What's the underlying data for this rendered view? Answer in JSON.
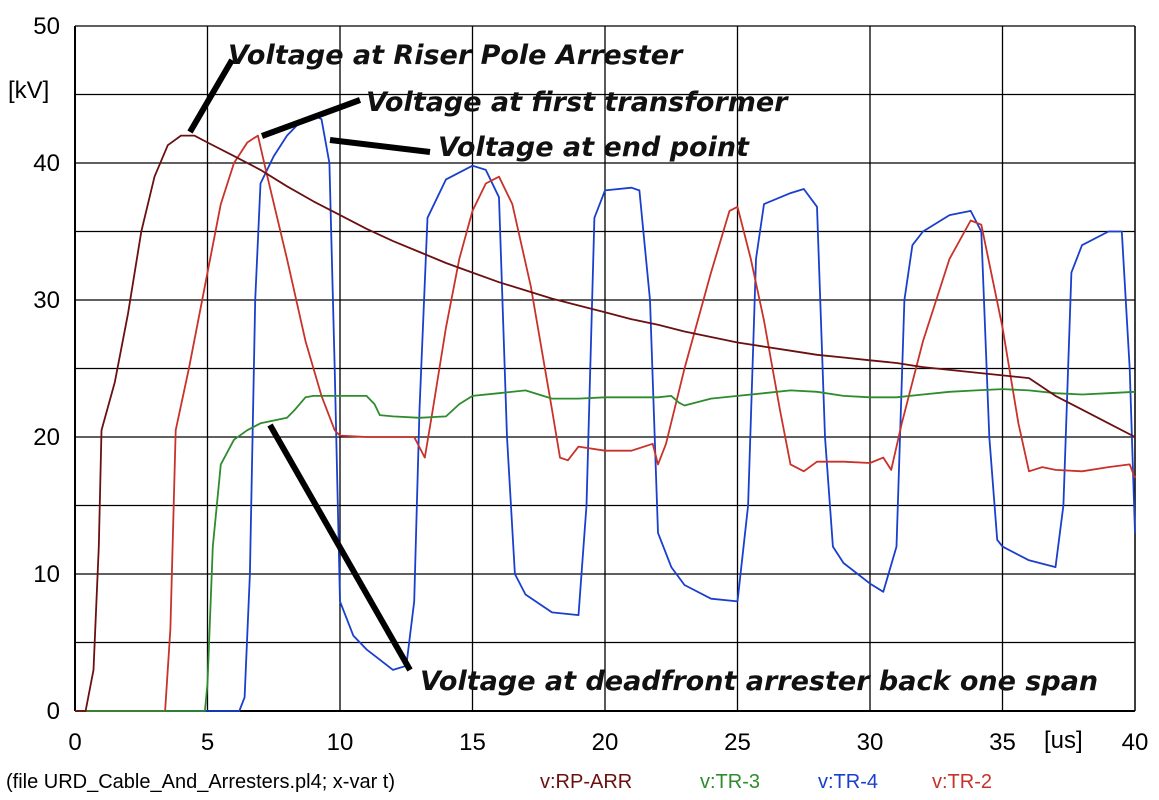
{
  "chart_data": {
    "type": "line",
    "title": "",
    "xlabel": "",
    "ylabel": "",
    "x_unit": "[us]",
    "y_unit": "[kV]",
    "xlim": [
      0,
      40
    ],
    "ylim": [
      0,
      50
    ],
    "x_ticks": [
      0,
      5,
      10,
      15,
      20,
      25,
      30,
      35,
      40
    ],
    "y_ticks": [
      0,
      10,
      20,
      30,
      40,
      50
    ],
    "grid": true,
    "footer_text": "(file URD_Cable_And_Arresters.pl4; x-var t)",
    "legend_position": "bottom",
    "series": [
      {
        "name": "v:RP-ARR",
        "color": "#6b1010",
        "points": [
          [
            0,
            0
          ],
          [
            0.4,
            0
          ],
          [
            0.7,
            3
          ],
          [
            0.9,
            12
          ],
          [
            1.0,
            20.5
          ],
          [
            1.5,
            24
          ],
          [
            2,
            29
          ],
          [
            2.5,
            35
          ],
          [
            3,
            39
          ],
          [
            3.5,
            41.3
          ],
          [
            4,
            42
          ],
          [
            4.5,
            42
          ],
          [
            5,
            41.5
          ],
          [
            6,
            40.5
          ],
          [
            7,
            39.5
          ],
          [
            8,
            38.3
          ],
          [
            9,
            37.2
          ],
          [
            10,
            36.2
          ],
          [
            11,
            35.2
          ],
          [
            12,
            34.3
          ],
          [
            13,
            33.5
          ],
          [
            14,
            32.7
          ],
          [
            15,
            32
          ],
          [
            16,
            31.3
          ],
          [
            17,
            30.7
          ],
          [
            18,
            30.1
          ],
          [
            19,
            29.6
          ],
          [
            20,
            29.1
          ],
          [
            21,
            28.6
          ],
          [
            22,
            28.2
          ],
          [
            23,
            27.7
          ],
          [
            24,
            27.3
          ],
          [
            25,
            26.9
          ],
          [
            26,
            26.6
          ],
          [
            27,
            26.3
          ],
          [
            28,
            26
          ],
          [
            29,
            25.8
          ],
          [
            30,
            25.6
          ],
          [
            31,
            25.4
          ],
          [
            32,
            25.1
          ],
          [
            33,
            24.9
          ],
          [
            34,
            24.7
          ],
          [
            35,
            24.5
          ],
          [
            36,
            24.3
          ],
          [
            37,
            23
          ],
          [
            38,
            22
          ],
          [
            39,
            21
          ],
          [
            40,
            20
          ]
        ]
      },
      {
        "name": "v:TR-3",
        "color": "#2e8b2e",
        "points": [
          [
            0,
            0
          ],
          [
            4.9,
            0
          ],
          [
            5.0,
            2
          ],
          [
            5.2,
            12
          ],
          [
            5.5,
            18
          ],
          [
            6,
            19.8
          ],
          [
            6.5,
            20.5
          ],
          [
            7,
            21
          ],
          [
            8,
            21.4
          ],
          [
            8.3,
            22
          ],
          [
            8.7,
            22.9
          ],
          [
            9,
            23
          ],
          [
            10,
            23
          ],
          [
            11,
            23
          ],
          [
            11.3,
            22.4
          ],
          [
            11.5,
            21.6
          ],
          [
            12,
            21.5
          ],
          [
            13,
            21.4
          ],
          [
            14,
            21.5
          ],
          [
            14.5,
            22.4
          ],
          [
            15,
            23
          ],
          [
            16,
            23.2
          ],
          [
            17,
            23.4
          ],
          [
            18,
            22.8
          ],
          [
            19,
            22.8
          ],
          [
            20,
            22.9
          ],
          [
            21,
            22.9
          ],
          [
            22,
            22.9
          ],
          [
            22.5,
            23
          ],
          [
            22.8,
            22.5
          ],
          [
            23,
            22.3
          ],
          [
            24,
            22.8
          ],
          [
            25,
            23
          ],
          [
            26,
            23.2
          ],
          [
            27,
            23.4
          ],
          [
            28,
            23.3
          ],
          [
            29,
            23
          ],
          [
            30,
            22.9
          ],
          [
            31,
            22.9
          ],
          [
            32,
            23.1
          ],
          [
            33,
            23.3
          ],
          [
            34,
            23.4
          ],
          [
            35,
            23.5
          ],
          [
            36,
            23.4
          ],
          [
            37,
            23.2
          ],
          [
            38,
            23.1
          ],
          [
            39,
            23.2
          ],
          [
            40,
            23.3
          ]
        ]
      },
      {
        "name": "v:TR-4",
        "color": "#1a3fcc",
        "points": [
          [
            0,
            0
          ],
          [
            6.2,
            0
          ],
          [
            6.4,
            1
          ],
          [
            6.6,
            10
          ],
          [
            6.8,
            30
          ],
          [
            7,
            38.5
          ],
          [
            7.5,
            40.5
          ],
          [
            8,
            42
          ],
          [
            8.5,
            43
          ],
          [
            9,
            43.5
          ],
          [
            9.3,
            43.2
          ],
          [
            9.6,
            40
          ],
          [
            9.8,
            25
          ],
          [
            10,
            8
          ],
          [
            10.5,
            5.5
          ],
          [
            11,
            4.5
          ],
          [
            12,
            3
          ],
          [
            12.5,
            3.3
          ],
          [
            12.8,
            8
          ],
          [
            13,
            22
          ],
          [
            13.3,
            36
          ],
          [
            14,
            38.8
          ],
          [
            15,
            39.8
          ],
          [
            15.5,
            39.5
          ],
          [
            16,
            37.5
          ],
          [
            16.3,
            20
          ],
          [
            16.6,
            10
          ],
          [
            17,
            8.5
          ],
          [
            18,
            7.2
          ],
          [
            19,
            7
          ],
          [
            19.3,
            15
          ],
          [
            19.6,
            36
          ],
          [
            20,
            38
          ],
          [
            21,
            38.2
          ],
          [
            21.3,
            38
          ],
          [
            21.7,
            30
          ],
          [
            22,
            13
          ],
          [
            22.5,
            10.5
          ],
          [
            23,
            9.2
          ],
          [
            24,
            8.2
          ],
          [
            25,
            8
          ],
          [
            25.4,
            15
          ],
          [
            25.7,
            33
          ],
          [
            26,
            37
          ],
          [
            27,
            37.8
          ],
          [
            27.5,
            38.1
          ],
          [
            28,
            36.8
          ],
          [
            28.3,
            20
          ],
          [
            28.6,
            12
          ],
          [
            29,
            10.8
          ],
          [
            30,
            9.3
          ],
          [
            30.5,
            8.7
          ],
          [
            31,
            12
          ],
          [
            31.3,
            30
          ],
          [
            31.6,
            34
          ],
          [
            32,
            35
          ],
          [
            33,
            36.2
          ],
          [
            33.8,
            36.5
          ],
          [
            34.2,
            35
          ],
          [
            34.5,
            20
          ],
          [
            34.8,
            12.5
          ],
          [
            35,
            12
          ],
          [
            36,
            11
          ],
          [
            37,
            10.5
          ],
          [
            37.3,
            15
          ],
          [
            37.6,
            32
          ],
          [
            38,
            34
          ],
          [
            39,
            35
          ],
          [
            39.5,
            35
          ],
          [
            39.8,
            25
          ],
          [
            40,
            13
          ]
        ]
      },
      {
        "name": "v:TR-2",
        "color": "#c8322a",
        "points": [
          [
            0,
            0
          ],
          [
            3.4,
            0
          ],
          [
            3.6,
            6
          ],
          [
            3.8,
            20.5
          ],
          [
            4.3,
            25
          ],
          [
            5,
            32
          ],
          [
            5.5,
            37
          ],
          [
            6,
            40
          ],
          [
            6.5,
            41.5
          ],
          [
            6.9,
            42
          ],
          [
            7.2,
            39.5
          ],
          [
            8,
            33
          ],
          [
            8.7,
            27
          ],
          [
            9.3,
            23
          ],
          [
            9.8,
            20.5
          ],
          [
            10,
            20.1
          ],
          [
            11,
            20
          ],
          [
            12,
            20
          ],
          [
            12.8,
            20
          ],
          [
            13.2,
            18.5
          ],
          [
            13.5,
            22
          ],
          [
            14,
            28
          ],
          [
            14.5,
            33
          ],
          [
            15,
            36.5
          ],
          [
            15.5,
            38.5
          ],
          [
            16,
            39
          ],
          [
            16.5,
            37
          ],
          [
            17.2,
            31
          ],
          [
            18,
            22
          ],
          [
            18.3,
            18.5
          ],
          [
            18.6,
            18.3
          ],
          [
            19,
            19.3
          ],
          [
            20,
            19
          ],
          [
            21,
            19
          ],
          [
            21.8,
            19.5
          ],
          [
            22,
            18
          ],
          [
            22.3,
            19.5
          ],
          [
            23,
            25
          ],
          [
            24,
            32
          ],
          [
            24.7,
            36.5
          ],
          [
            25,
            36.8
          ],
          [
            25.5,
            33
          ],
          [
            26,
            28.5
          ],
          [
            26.6,
            22
          ],
          [
            27,
            18
          ],
          [
            27.5,
            17.5
          ],
          [
            28,
            18.2
          ],
          [
            29,
            18.2
          ],
          [
            30,
            18.1
          ],
          [
            30.5,
            18.5
          ],
          [
            30.8,
            17.6
          ],
          [
            31.2,
            21
          ],
          [
            32,
            27
          ],
          [
            33,
            33
          ],
          [
            33.8,
            35.8
          ],
          [
            34.2,
            35.5
          ],
          [
            35,
            28
          ],
          [
            35.6,
            21
          ],
          [
            36,
            17.5
          ],
          [
            36.5,
            17.8
          ],
          [
            37,
            17.6
          ],
          [
            38,
            17.5
          ],
          [
            39,
            17.8
          ],
          [
            39.8,
            18
          ],
          [
            40,
            17
          ]
        ]
      }
    ],
    "annotations": [
      {
        "text": "Voltage at Riser Pole Arrester"
      },
      {
        "text": "Voltage at first transformer"
      },
      {
        "text": "Voltage at  end point"
      },
      {
        "text": "Voltage at deadfront arrester back one span"
      }
    ]
  }
}
